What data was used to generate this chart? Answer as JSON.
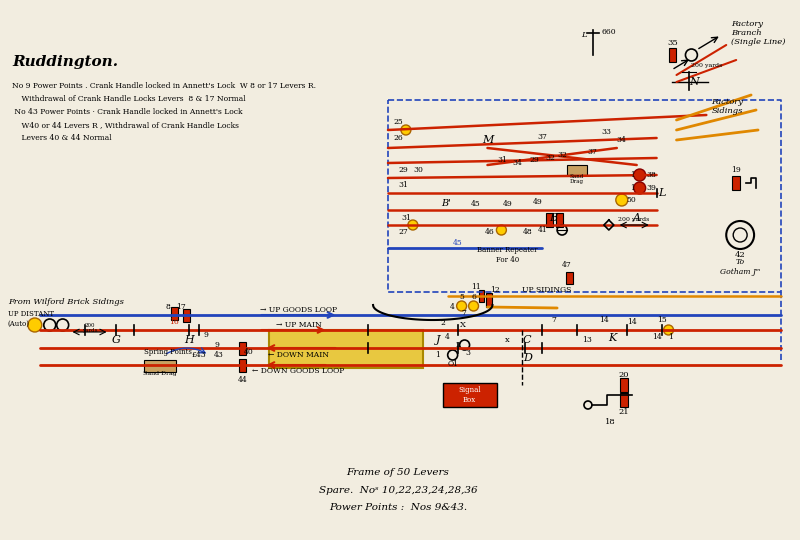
{
  "bg_color": "#f2ede0",
  "title": "Ruddington.",
  "notes": [
    "No 9 Power Points . Crank Handle locked in Annett's Lock  W 8 or 17 Levers R.",
    "    Withdrawal of Crank Handle Locks Levers  8 & 17 Normal",
    " No 43 Power Points · Crank Handle locked in Annett's Lock",
    "    W40 or 44 Levers R , Withdrawal of Crank Handle Locks",
    "    Levers 40 & 44 Normal"
  ],
  "footer": [
    "Frame of 50 Levers",
    "Spare.  Noˢ 10,22,23,24,28,36",
    "Power Points :  Nos 9&43."
  ],
  "red": "#cc2200",
  "blue": "#2244bb",
  "orange": "#e08800",
  "tan": "#c8a060"
}
